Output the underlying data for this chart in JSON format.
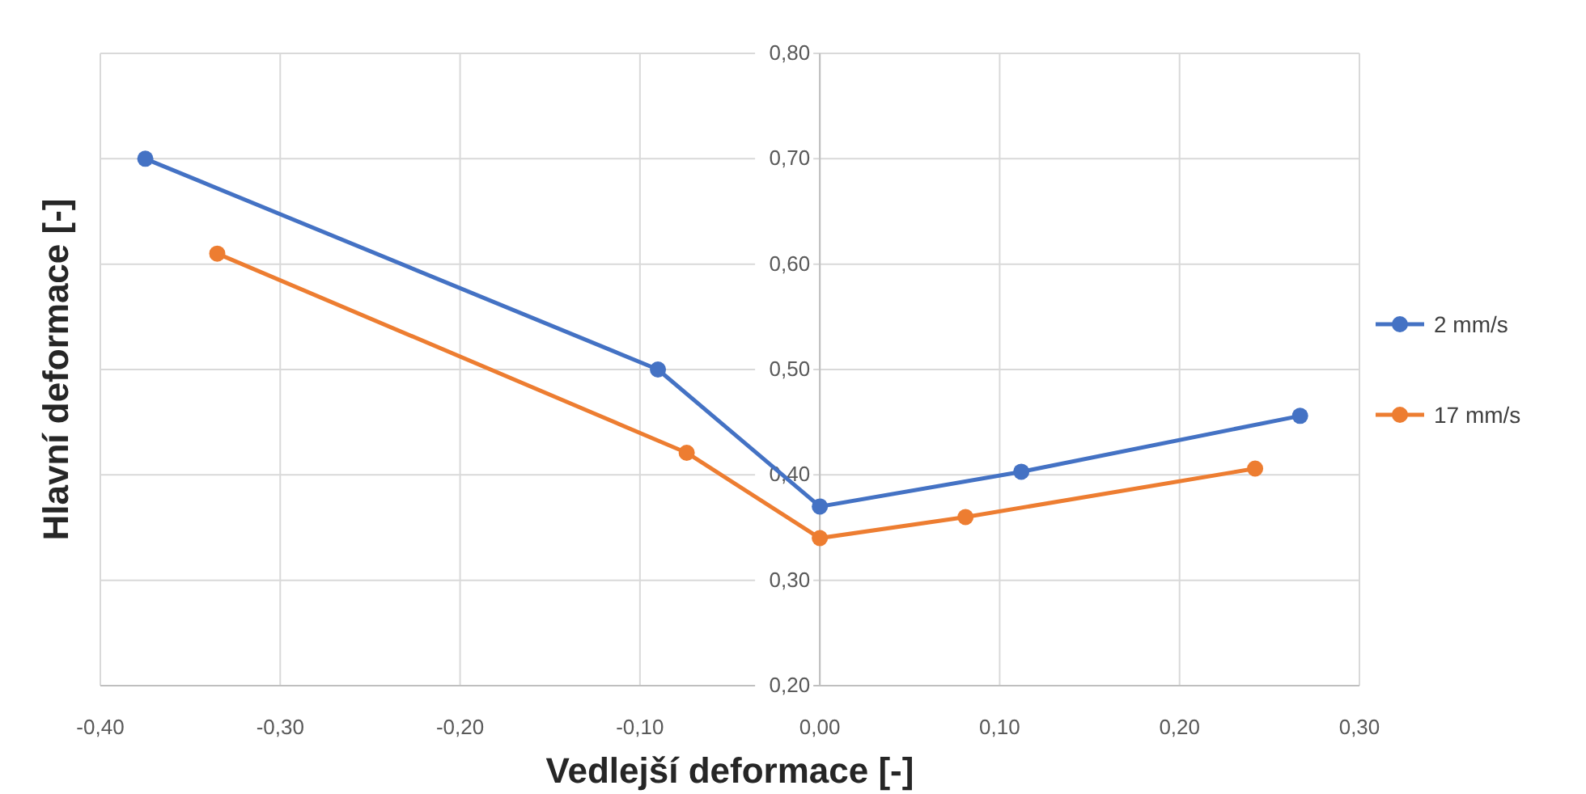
{
  "chart_data": {
    "type": "line",
    "xlabel": "Vedlejší deformace [-]",
    "ylabel": "Hlavní deformace [-]",
    "xlim": [
      -0.4,
      0.3
    ],
    "xticks": [
      {
        "value": -0.4,
        "label": "-0,40"
      },
      {
        "value": -0.3,
        "label": "-0,30"
      },
      {
        "value": -0.2,
        "label": "-0,20"
      },
      {
        "value": -0.1,
        "label": "-0,10"
      },
      {
        "value": 0,
        "label": "0,00"
      },
      {
        "value": 0.1,
        "label": "0,10"
      },
      {
        "value": 0.2,
        "label": "0,20"
      },
      {
        "value": 0.3,
        "label": "0,30"
      }
    ],
    "ylim": [
      0.2,
      0.8
    ],
    "yticks": [
      {
        "value": 0.2,
        "label": "0,20"
      },
      {
        "value": 0.3,
        "label": "0,30"
      },
      {
        "value": 0.4,
        "label": "0,40"
      },
      {
        "value": 0.5,
        "label": "0,50"
      },
      {
        "value": 0.6,
        "label": "0,60"
      },
      {
        "value": 0.7,
        "label": "0,70"
      },
      {
        "value": 0.8,
        "label": "0,80"
      }
    ],
    "grid": true,
    "legend": "right",
    "marker": "circle",
    "line_style": "solid",
    "series": [
      {
        "name": "2 mm/s",
        "color": "#4472c4",
        "x": [
          -0.375,
          -0.09,
          0,
          0.112,
          0.267
        ],
        "values": [
          0.7,
          0.5,
          0.37,
          0.403,
          0.456
        ]
      },
      {
        "name": "17 mm/s",
        "color": "#ed7d31",
        "x": [
          -0.335,
          -0.074,
          0,
          0.081,
          0.242
        ],
        "values": [
          0.61,
          0.421,
          0.34,
          0.36,
          0.406
        ]
      }
    ]
  }
}
